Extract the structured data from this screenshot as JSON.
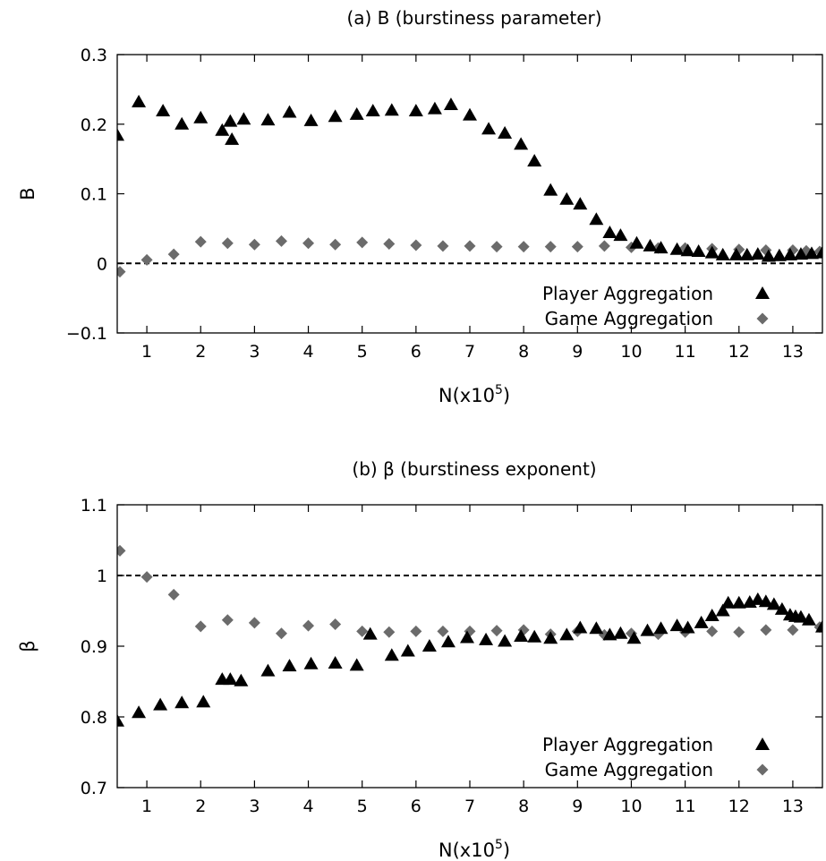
{
  "colors": {
    "player": "#000000",
    "game": "#6b6b6b",
    "axis": "#000000",
    "background": "#ffffff"
  },
  "chart_data": [
    {
      "type": "scatter",
      "title": "(a) B (burstiness parameter)",
      "xlabel": "N(x10",
      "xlabel_sup": "5",
      "xlabel_end": ")",
      "ylabel": "B",
      "xlim": [
        0.45,
        13.55
      ],
      "ylim": [
        -0.1,
        0.3
      ],
      "xticks": [
        1,
        2,
        3,
        4,
        5,
        6,
        7,
        8,
        9,
        10,
        11,
        12,
        13
      ],
      "yticks": [
        -0.1,
        0,
        0.1,
        0.2,
        0.3
      ],
      "ytick_labels": [
        "−0.1",
        "0",
        "0.1",
        "0.2",
        "0.3"
      ],
      "reference_line": 0,
      "grid": false,
      "legend_position": "bottom-right",
      "series": [
        {
          "name": "Player Aggregation",
          "marker": "triangle",
          "x": [
            0.45,
            0.85,
            1.3,
            1.65,
            2.0,
            2.4,
            2.55,
            2.58,
            2.8,
            3.25,
            3.65,
            4.05,
            4.5,
            4.9,
            5.2,
            5.55,
            6.0,
            6.35,
            6.65,
            7.0,
            7.35,
            7.65,
            7.95,
            8.2,
            8.5,
            8.8,
            9.05,
            9.35,
            9.6,
            9.8,
            10.1,
            10.35,
            10.55,
            10.85,
            11.05,
            11.25,
            11.5,
            11.7,
            11.95,
            12.15,
            12.35,
            12.55,
            12.75,
            12.95,
            13.15,
            13.35,
            13.55
          ],
          "y": [
            0.184,
            0.232,
            0.219,
            0.2,
            0.209,
            0.191,
            0.204,
            0.178,
            0.207,
            0.206,
            0.217,
            0.205,
            0.211,
            0.214,
            0.219,
            0.22,
            0.219,
            0.222,
            0.228,
            0.213,
            0.193,
            0.187,
            0.171,
            0.147,
            0.105,
            0.092,
            0.085,
            0.063,
            0.044,
            0.04,
            0.029,
            0.025,
            0.022,
            0.02,
            0.018,
            0.017,
            0.015,
            0.012,
            0.012,
            0.012,
            0.013,
            0.01,
            0.011,
            0.012,
            0.013,
            0.014,
            0.015
          ]
        },
        {
          "name": "Game Aggregation",
          "marker": "diamond",
          "x": [
            0.5,
            1.0,
            1.5,
            2.0,
            2.5,
            3.0,
            3.5,
            4.0,
            4.5,
            5.0,
            5.5,
            6.0,
            6.5,
            7.0,
            7.5,
            8.0,
            8.5,
            9.0,
            9.5,
            10.0,
            10.5,
            11.0,
            11.5,
            12.0,
            12.5,
            13.0,
            13.25,
            13.5
          ],
          "y": [
            -0.012,
            0.005,
            0.013,
            0.031,
            0.029,
            0.027,
            0.032,
            0.029,
            0.027,
            0.03,
            0.028,
            0.026,
            0.025,
            0.025,
            0.024,
            0.024,
            0.024,
            0.024,
            0.025,
            0.023,
            0.022,
            0.022,
            0.021,
            0.02,
            0.019,
            0.019,
            0.018,
            0.017
          ]
        }
      ]
    },
    {
      "type": "scatter",
      "title": "(b) β (burstiness exponent)",
      "xlabel": "N(x10",
      "xlabel_sup": "5",
      "xlabel_end": ")",
      "ylabel": "β",
      "xlim": [
        0.45,
        13.55
      ],
      "ylim": [
        0.7,
        1.1
      ],
      "xticks": [
        1,
        2,
        3,
        4,
        5,
        6,
        7,
        8,
        9,
        10,
        11,
        12,
        13
      ],
      "yticks": [
        0.7,
        0.8,
        0.9,
        1,
        1.1
      ],
      "ytick_labels": [
        "0.7",
        "0.8",
        "0.9",
        "1",
        "1.1"
      ],
      "reference_line": 1,
      "grid": false,
      "legend_position": "bottom-right",
      "series": [
        {
          "name": "Player Aggregation",
          "marker": "triangle",
          "x": [
            0.45,
            0.85,
            1.25,
            1.65,
            2.05,
            2.4,
            2.55,
            2.75,
            3.25,
            3.65,
            4.05,
            4.5,
            4.9,
            5.15,
            5.55,
            5.85,
            6.25,
            6.6,
            6.95,
            7.3,
            7.65,
            7.95,
            8.2,
            8.5,
            8.8,
            9.05,
            9.35,
            9.6,
            9.8,
            10.05,
            10.3,
            10.55,
            10.85,
            11.05,
            11.3,
            11.5,
            11.7,
            11.8,
            12.0,
            12.2,
            12.35,
            12.5,
            12.65,
            12.8,
            12.95,
            13.05,
            13.15,
            13.3,
            13.55
          ],
          "y": [
            0.794,
            0.806,
            0.817,
            0.82,
            0.821,
            0.853,
            0.853,
            0.851,
            0.865,
            0.872,
            0.875,
            0.876,
            0.873,
            0.917,
            0.887,
            0.893,
            0.9,
            0.906,
            0.912,
            0.909,
            0.907,
            0.914,
            0.913,
            0.911,
            0.916,
            0.926,
            0.925,
            0.916,
            0.918,
            0.911,
            0.922,
            0.925,
            0.929,
            0.926,
            0.933,
            0.943,
            0.95,
            0.961,
            0.961,
            0.962,
            0.966,
            0.963,
            0.959,
            0.952,
            0.944,
            0.942,
            0.941,
            0.937,
            0.927
          ]
        },
        {
          "name": "Game Aggregation",
          "marker": "diamond",
          "x": [
            0.5,
            1.0,
            1.5,
            2.0,
            2.5,
            3.0,
            3.5,
            4.0,
            4.5,
            5.0,
            5.5,
            6.0,
            6.5,
            7.0,
            7.5,
            8.0,
            8.5,
            9.0,
            9.5,
            10.0,
            10.5,
            11.0,
            11.5,
            12.0,
            12.5,
            13.0,
            13.5
          ],
          "y": [
            1.035,
            0.998,
            0.973,
            0.928,
            0.937,
            0.933,
            0.918,
            0.929,
            0.931,
            0.921,
            0.92,
            0.921,
            0.921,
            0.921,
            0.922,
            0.923,
            0.917,
            0.921,
            0.916,
            0.918,
            0.917,
            0.92,
            0.921,
            0.92,
            0.923,
            0.923,
            0.927
          ]
        }
      ]
    }
  ]
}
